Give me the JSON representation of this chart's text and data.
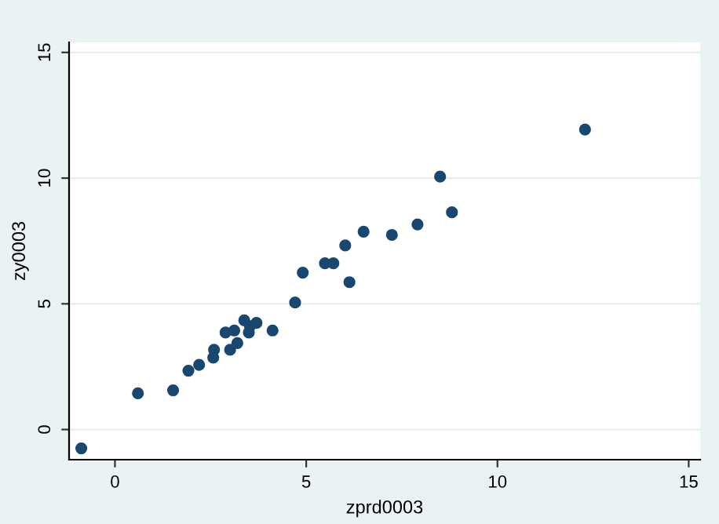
{
  "chart_data": {
    "type": "scatter",
    "xlabel": "zprd0003",
    "ylabel": "zy0003",
    "x": [
      -0.88,
      0.6,
      1.52,
      1.92,
      2.2,
      2.57,
      2.59,
      2.89,
      3.01,
      3.12,
      3.2,
      3.38,
      3.5,
      3.53,
      3.7,
      4.12,
      4.71,
      4.91,
      5.49,
      5.71,
      6.02,
      6.13,
      6.5,
      7.24,
      7.91,
      8.5,
      8.81,
      12.29
    ],
    "series": [
      {
        "color": "#1a476f",
        "values": [
          -0.75,
          1.44,
          1.56,
          2.34,
          2.57,
          2.86,
          3.17,
          3.86,
          3.17,
          3.94,
          3.44,
          4.34,
          3.86,
          4.11,
          4.24,
          3.94,
          5.05,
          6.24,
          6.61,
          6.61,
          7.32,
          5.86,
          7.87,
          7.74,
          8.16,
          10.06,
          8.64,
          11.93
        ]
      }
    ],
    "xlim": [
      -1.2,
      15.3
    ],
    "ylim": [
      -1.2,
      15.4
    ],
    "xticks": [
      0,
      5,
      10,
      15
    ],
    "yticks": [
      0,
      5,
      10,
      15
    ],
    "grid": "y",
    "marker": "circle"
  }
}
